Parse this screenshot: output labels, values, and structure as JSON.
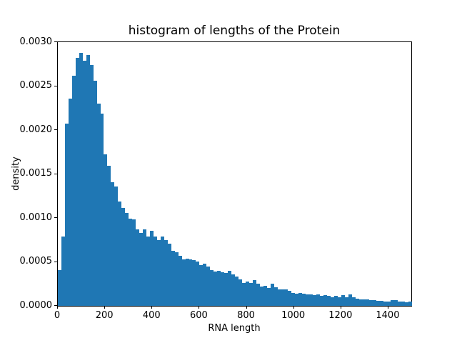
{
  "chart_data": {
    "type": "bar",
    "subtype": "histogram",
    "title": "histogram of lengths of the Protein",
    "xlabel": "RNA length",
    "ylabel": "density",
    "xlim": [
      0,
      1500
    ],
    "ylim": [
      0,
      0.003
    ],
    "grid": false,
    "legend_position": "none",
    "bar_color": "#1f77b4",
    "spine_color": "#000000",
    "background_color": "#ffffff",
    "bin_start": 0,
    "bin_width": 15,
    "n_bins": 100,
    "x_ticks": [
      0,
      200,
      400,
      600,
      800,
      1000,
      1200,
      1400
    ],
    "x_tick_labels": [
      "0",
      "200",
      "400",
      "600",
      "800",
      "1000",
      "1200",
      "1400"
    ],
    "y_ticks": [
      0.0,
      0.0005,
      0.001,
      0.0015,
      0.002,
      0.0025,
      0.003
    ],
    "y_tick_labels": [
      "0.0000",
      "0.0005",
      "0.0010",
      "0.0015",
      "0.0020",
      "0.0025",
      "0.0030"
    ],
    "densities": [
      0.00041,
      0.00079,
      0.00207,
      0.00236,
      0.00262,
      0.00282,
      0.00288,
      0.00279,
      0.00285,
      0.00274,
      0.00256,
      0.0023,
      0.00219,
      0.00172,
      0.00159,
      0.00141,
      0.00136,
      0.00119,
      0.00111,
      0.00106,
      0.00099,
      0.00098,
      0.00087,
      0.00083,
      0.00087,
      0.00079,
      0.00085,
      0.00079,
      0.00075,
      0.00079,
      0.00075,
      0.00071,
      0.00063,
      0.00061,
      0.00057,
      0.00053,
      0.00054,
      0.00053,
      0.00052,
      0.0005,
      0.00046,
      0.00048,
      0.00045,
      0.00041,
      0.00039,
      0.0004,
      0.00038,
      0.00037,
      0.0004,
      0.00036,
      0.00033,
      0.0003,
      0.00026,
      0.00028,
      0.00026,
      0.00029,
      0.00025,
      0.00022,
      0.00023,
      0.0002,
      0.00025,
      0.00021,
      0.00019,
      0.00019,
      0.00019,
      0.00017,
      0.00015,
      0.00014,
      0.00015,
      0.00014,
      0.00013,
      0.00013,
      0.00012,
      0.00013,
      0.00011,
      0.00012,
      0.00011,
      0.0001,
      0.00011,
      0.0001,
      0.00012,
      0.0001,
      0.00013,
      0.0001,
      8.5e-05,
      7.7e-05,
      7.2e-05,
      7.2e-05,
      6.7e-05,
      6.7e-05,
      5.8e-05,
      5.8e-05,
      5e-05,
      4.5e-05,
      6.7e-05,
      6.5e-05,
      5e-05,
      4.5e-05,
      4e-05,
      4.5e-05
    ]
  }
}
